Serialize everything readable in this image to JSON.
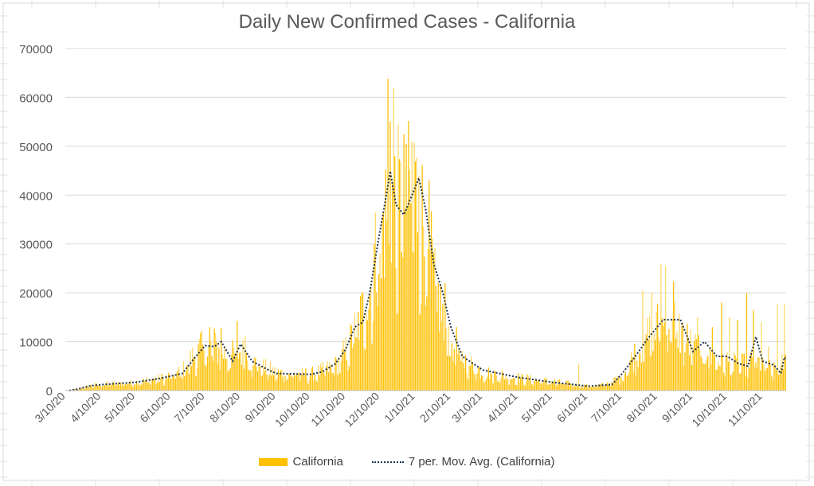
{
  "chart_data": {
    "type": "bar",
    "title": "Daily New Confirmed Cases - California",
    "xlabel": "",
    "ylabel": "",
    "ylim": [
      0,
      70000
    ],
    "y_ticks": [
      "0",
      "10000",
      "20000",
      "30000",
      "40000",
      "50000",
      "60000",
      "70000"
    ],
    "x_tick_labels": [
      "3/10/20",
      "4/10/20",
      "5/10/20",
      "6/10/20",
      "7/10/20",
      "8/10/20",
      "9/10/20",
      "10/10/20",
      "11/10/20",
      "12/10/20",
      "1/10/21",
      "2/10/21",
      "3/10/21",
      "4/10/21",
      "5/10/21",
      "6/10/21",
      "7/10/21",
      "8/10/21",
      "9/10/21",
      "10/10/21",
      "11/10/21"
    ],
    "date_range": [
      "2020-03-10",
      "2021-11-30"
    ],
    "grid": true,
    "legend_position": "bottom",
    "colors": {
      "bars": "#ffc000",
      "bars_light": "#ffd966",
      "moving_avg": "#1f3350",
      "grid": "#d9d9d9"
    },
    "series": [
      {
        "name": "California",
        "kind": "bar",
        "anchors": [
          [
            "2020-03-10",
            50
          ],
          [
            "2020-03-20",
            300
          ],
          [
            "2020-04-01",
            1000
          ],
          [
            "2020-04-10",
            1200
          ],
          [
            "2020-05-10",
            1700
          ],
          [
            "2020-06-01",
            2500
          ],
          [
            "2020-06-10",
            2900
          ],
          [
            "2020-06-20",
            4000
          ],
          [
            "2020-07-01",
            7500
          ],
          [
            "2020-07-10",
            9000
          ],
          [
            "2020-07-20",
            8500
          ],
          [
            "2020-08-01",
            7000
          ],
          [
            "2020-08-10",
            8000
          ],
          [
            "2020-08-20",
            6000
          ],
          [
            "2020-09-01",
            4500
          ],
          [
            "2020-09-10",
            3600
          ],
          [
            "2020-10-10",
            3300
          ],
          [
            "2020-10-20",
            4000
          ],
          [
            "2020-11-01",
            5000
          ],
          [
            "2020-11-10",
            8000
          ],
          [
            "2020-11-20",
            13000
          ],
          [
            "2020-12-01",
            20000
          ],
          [
            "2020-12-10",
            32000
          ],
          [
            "2020-12-20",
            40000
          ],
          [
            "2020-12-28",
            37000
          ],
          [
            "2021-01-05",
            39000
          ],
          [
            "2021-01-12",
            40000
          ],
          [
            "2021-01-20",
            30000
          ],
          [
            "2021-02-01",
            17000
          ],
          [
            "2021-02-10",
            10000
          ],
          [
            "2021-02-20",
            6500
          ],
          [
            "2021-03-10",
            3800
          ],
          [
            "2021-04-10",
            2600
          ],
          [
            "2021-05-10",
            1800
          ],
          [
            "2021-06-10",
            900
          ],
          [
            "2021-06-20",
            1000
          ],
          [
            "2021-07-01",
            1800
          ],
          [
            "2021-07-10",
            3000
          ],
          [
            "2021-07-20",
            7000
          ],
          [
            "2021-08-01",
            11000
          ],
          [
            "2021-08-10",
            13000
          ],
          [
            "2021-08-25",
            14000
          ],
          [
            "2021-09-01",
            11000
          ],
          [
            "2021-09-10",
            9000
          ],
          [
            "2021-10-01",
            6500
          ],
          [
            "2021-10-10",
            6000
          ],
          [
            "2021-10-20",
            5000
          ],
          [
            "2021-11-01",
            6000
          ],
          [
            "2021-11-10",
            5500
          ],
          [
            "2021-11-20",
            4000
          ],
          [
            "2021-11-30",
            6000
          ]
        ],
        "spikes": [
          [
            "2020-07-06",
            11800
          ],
          [
            "2020-07-14",
            13000
          ],
          [
            "2020-07-18",
            12700
          ],
          [
            "2020-07-24",
            12900
          ],
          [
            "2020-08-07",
            14200
          ],
          [
            "2020-08-14",
            11200
          ],
          [
            "2020-11-28",
            15800
          ],
          [
            "2020-12-05",
            30000
          ],
          [
            "2020-12-12",
            35600
          ],
          [
            "2020-12-15",
            45200
          ],
          [
            "2020-12-17",
            63800
          ],
          [
            "2020-12-19",
            55000
          ],
          [
            "2020-12-22",
            62000
          ],
          [
            "2020-12-23",
            48000
          ],
          [
            "2020-12-31",
            52500
          ],
          [
            "2021-01-02",
            50500
          ],
          [
            "2021-01-07",
            51000
          ],
          [
            "2021-01-09",
            50700
          ],
          [
            "2021-01-13",
            44000
          ],
          [
            "2021-01-22",
            43000
          ],
          [
            "2021-02-05",
            22000
          ],
          [
            "2021-02-15",
            13000
          ],
          [
            "2021-06-02",
            5500
          ],
          [
            "2021-07-28",
            20500
          ],
          [
            "2021-08-05",
            20000
          ],
          [
            "2021-08-13",
            25900
          ],
          [
            "2021-08-17",
            25500
          ],
          [
            "2021-08-24",
            22300
          ],
          [
            "2021-09-14",
            15000
          ],
          [
            "2021-09-27",
            13000
          ],
          [
            "2021-10-05",
            18000
          ],
          [
            "2021-10-12",
            15000
          ],
          [
            "2021-10-19",
            14500
          ],
          [
            "2021-10-27",
            20000
          ],
          [
            "2021-11-02",
            16500
          ],
          [
            "2021-11-09",
            14000
          ],
          [
            "2021-11-15",
            9000
          ],
          [
            "2021-11-23",
            17600
          ],
          [
            "2021-11-29",
            17800
          ]
        ]
      },
      {
        "name": "7 per. Mov. Avg. (California)",
        "kind": "line",
        "points": [
          [
            "2020-03-13",
            0
          ],
          [
            "2020-03-20",
            300
          ],
          [
            "2020-04-01",
            1000
          ],
          [
            "2020-04-10",
            1200
          ],
          [
            "2020-05-10",
            1700
          ],
          [
            "2020-06-01",
            2500
          ],
          [
            "2020-06-20",
            3500
          ],
          [
            "2020-07-01",
            6800
          ],
          [
            "2020-07-10",
            9200
          ],
          [
            "2020-07-18",
            9000
          ],
          [
            "2020-07-24",
            10000
          ],
          [
            "2020-08-03",
            6000
          ],
          [
            "2020-08-10",
            9500
          ],
          [
            "2020-08-20",
            6000
          ],
          [
            "2020-09-01",
            4500
          ],
          [
            "2020-09-10",
            3500
          ],
          [
            "2020-10-10",
            3300
          ],
          [
            "2020-10-20",
            3800
          ],
          [
            "2020-11-01",
            5500
          ],
          [
            "2020-11-10",
            8500
          ],
          [
            "2020-11-18",
            13000
          ],
          [
            "2020-11-25",
            14000
          ],
          [
            "2020-12-01",
            20000
          ],
          [
            "2020-12-08",
            30000
          ],
          [
            "2020-12-14",
            38000
          ],
          [
            "2020-12-19",
            44900
          ],
          [
            "2020-12-24",
            38000
          ],
          [
            "2020-12-31",
            36000
          ],
          [
            "2021-01-07",
            40000
          ],
          [
            "2021-01-13",
            43500
          ],
          [
            "2021-01-19",
            37000
          ],
          [
            "2021-01-26",
            26000
          ],
          [
            "2021-02-03",
            20000
          ],
          [
            "2021-02-10",
            13000
          ],
          [
            "2021-02-20",
            7000
          ],
          [
            "2021-03-10",
            4200
          ],
          [
            "2021-04-10",
            2700
          ],
          [
            "2021-05-10",
            1700
          ],
          [
            "2021-06-10",
            900
          ],
          [
            "2021-07-01",
            1200
          ],
          [
            "2021-07-10",
            3500
          ],
          [
            "2021-07-20",
            6500
          ],
          [
            "2021-08-01",
            10500
          ],
          [
            "2021-08-15",
            14500
          ],
          [
            "2021-08-30",
            14500
          ],
          [
            "2021-09-10",
            8000
          ],
          [
            "2021-09-20",
            10000
          ],
          [
            "2021-10-01",
            7000
          ],
          [
            "2021-10-10",
            7000
          ],
          [
            "2021-10-20",
            5500
          ],
          [
            "2021-10-28",
            5000
          ],
          [
            "2021-11-04",
            11000
          ],
          [
            "2021-11-10",
            6000
          ],
          [
            "2021-11-20",
            5200
          ],
          [
            "2021-11-26",
            3500
          ],
          [
            "2021-11-29",
            6800
          ],
          [
            "2021-11-30",
            6600
          ]
        ]
      }
    ]
  }
}
